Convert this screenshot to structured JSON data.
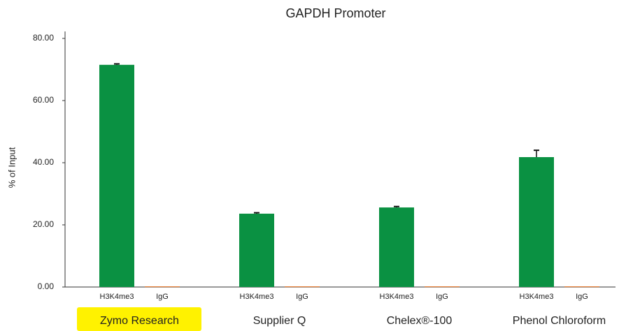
{
  "chart_data": {
    "type": "bar",
    "title": "GAPDH Promoter",
    "ylabel": "% of Input",
    "categories": [
      "Zymo Research",
      "Supplier Q",
      "Chelex®-100",
      "Phenol Chloroform"
    ],
    "series": [
      {
        "name": "H3K4me3",
        "color": "#0a9142",
        "values": [
          71.5,
          23.6,
          25.6,
          41.8
        ],
        "errors": [
          0.3,
          0.3,
          0.3,
          2.2
        ]
      },
      {
        "name": "IgG",
        "color": "#e8701e",
        "values": [
          0.2,
          0.2,
          0.2,
          0.2
        ],
        "errors": [
          0,
          0,
          0,
          0
        ]
      }
    ],
    "ylim": [
      0,
      80
    ],
    "yticks": [
      {
        "value": 0,
        "label": "0.00"
      },
      {
        "value": 20,
        "label": "20.00"
      },
      {
        "value": 40,
        "label": "40.00"
      },
      {
        "value": 60,
        "label": "60.00"
      },
      {
        "value": 80,
        "label": "80.00"
      }
    ]
  }
}
